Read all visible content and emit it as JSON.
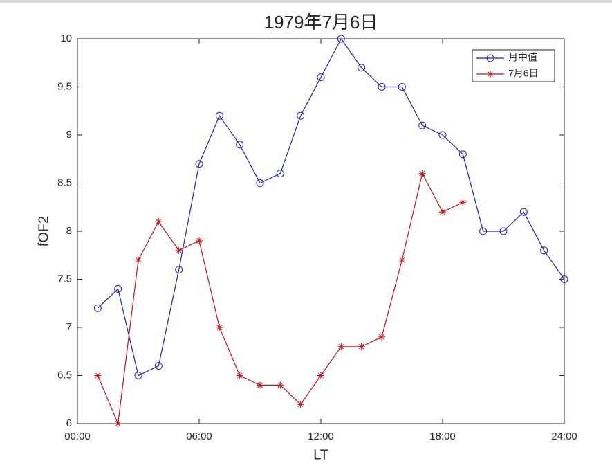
{
  "chart_data": {
    "type": "line",
    "title": "1979年7月6日",
    "x_label": "LT",
    "y_label": "fOF2",
    "x": [
      1,
      2,
      3,
      4,
      5,
      6,
      7,
      8,
      9,
      10,
      11,
      12,
      13,
      14,
      15,
      16,
      17,
      18,
      19,
      20,
      21,
      22,
      23,
      24
    ],
    "series": [
      {
        "name": "月中值",
        "color": "#1f1fb4",
        "marker": "circle",
        "values": [
          7.2,
          7.4,
          6.5,
          6.6,
          7.6,
          8.7,
          9.2,
          8.9,
          8.5,
          8.6,
          9.2,
          9.6,
          10.0,
          9.7,
          9.5,
          9.5,
          9.1,
          9.0,
          8.8,
          8.0,
          8.0,
          8.2,
          7.8,
          7.5
        ]
      },
      {
        "name": "7月6日",
        "color": "#c0141e",
        "marker": "asterisk",
        "values": [
          6.5,
          6.0,
          7.7,
          8.1,
          7.8,
          7.9,
          7.0,
          6.5,
          6.4,
          6.4,
          6.2,
          6.5,
          6.8,
          6.8,
          6.9,
          7.7,
          8.6,
          8.2,
          8.3,
          null,
          null,
          null,
          null,
          null
        ]
      }
    ],
    "xlim": [
      0,
      24
    ],
    "xticks": [
      {
        "value": 0,
        "label": "00:00"
      },
      {
        "value": 6,
        "label": "06:00"
      },
      {
        "value": 12,
        "label": "12:00"
      },
      {
        "value": 18,
        "label": "18:00"
      },
      {
        "value": 24,
        "label": "24:00"
      }
    ],
    "ylim": [
      6,
      10
    ],
    "yticks": [
      6,
      6.5,
      7,
      7.5,
      8,
      8.5,
      9,
      9.5,
      10
    ],
    "grid": false,
    "legend": "upper right"
  }
}
